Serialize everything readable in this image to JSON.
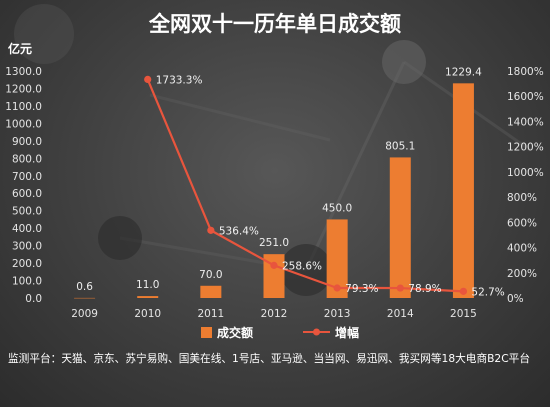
{
  "chart_data": {
    "type": "bar",
    "title": "全网双十一历年单日成交额",
    "categories": [
      "2009",
      "2010",
      "2011",
      "2012",
      "2013",
      "2014",
      "2015"
    ],
    "ylabel": "亿元",
    "ylim": [
      0,
      1300
    ],
    "y_ticks": [
      "0.0",
      "100.0",
      "200.0",
      "300.0",
      "400.0",
      "500.0",
      "600.0",
      "700.0",
      "800.0",
      "900.0",
      "1000.0",
      "1100.0",
      "1200.0",
      "1300.0"
    ],
    "y2lim": [
      0,
      1800
    ],
    "y2_ticks": [
      "0%",
      "200%",
      "400%",
      "600%",
      "800%",
      "1000%",
      "1200%",
      "1400%",
      "1600%",
      "1800%"
    ],
    "grid": false,
    "legend": "bottom-center",
    "series": [
      {
        "name": "成交额",
        "type": "bar",
        "axis": "left",
        "color": "#ed7d31",
        "values": [
          0.6,
          11.0,
          70.0,
          251.0,
          450.0,
          805.1,
          1229.4
        ],
        "labels": [
          "0.6",
          "11.0",
          "70.0",
          "251.0",
          "450.0",
          "805.1",
          "1229.4"
        ]
      },
      {
        "name": "增幅",
        "type": "line",
        "axis": "right",
        "color": "#e8553d",
        "values": [
          null,
          1733.3,
          536.4,
          258.6,
          79.3,
          78.9,
          52.7
        ],
        "labels": [
          null,
          "1733.3%",
          "536.4%",
          "258.6%",
          "79.3%",
          "78.9%",
          "52.7%"
        ]
      }
    ]
  },
  "footer": {
    "text": "监测平台：天猫、京东、苏宁易购、国美在线、1号店、亚马逊、当当网、易迅网、我买网等18大电商B2C平台"
  },
  "colors": {
    "background": "#3c3c3c",
    "text": "#ffffff"
  }
}
